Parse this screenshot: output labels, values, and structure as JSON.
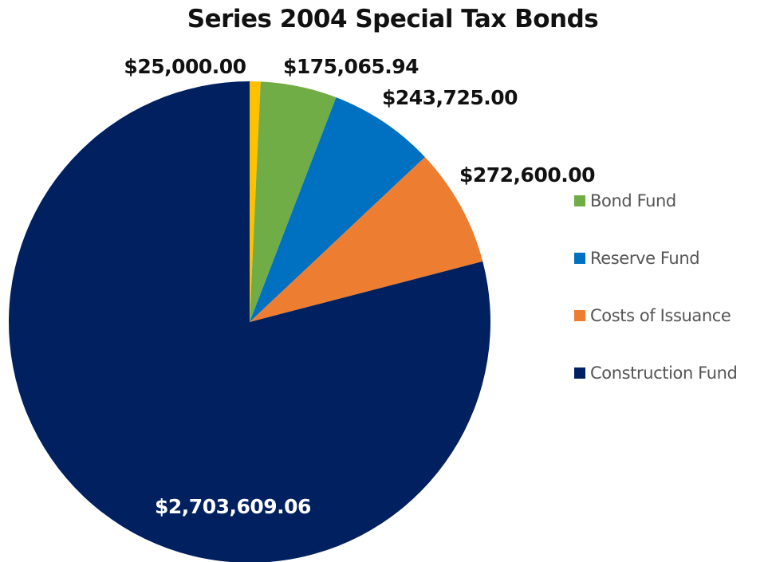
{
  "chart_data": {
    "type": "pie",
    "title": "Series 2004 Special Tax Bonds",
    "slices": [
      {
        "label": "",
        "value": 25000.0,
        "display": "$25,000.00",
        "color": "#FFC000"
      },
      {
        "label": "Bond Fund",
        "value": 175065.94,
        "display": "$175,065.94",
        "color": "#70AD47"
      },
      {
        "label": "Reserve Fund",
        "value": 243725.0,
        "display": "$243,725.00",
        "color": "#0070C0"
      },
      {
        "label": "Costs of Issuance",
        "value": 272600.0,
        "display": "$272,600.00",
        "color": "#ED7D31"
      },
      {
        "label": "Construction Fund",
        "value": 2703609.06,
        "display": "$2,703,609.06",
        "color": "#002060"
      }
    ],
    "legend": {
      "placement": "right",
      "entries": [
        "Bond Fund",
        "Reserve Fund",
        "Costs of Issuance",
        "Construction Fund"
      ]
    },
    "start_angle": "top",
    "direction": "clockwise"
  }
}
